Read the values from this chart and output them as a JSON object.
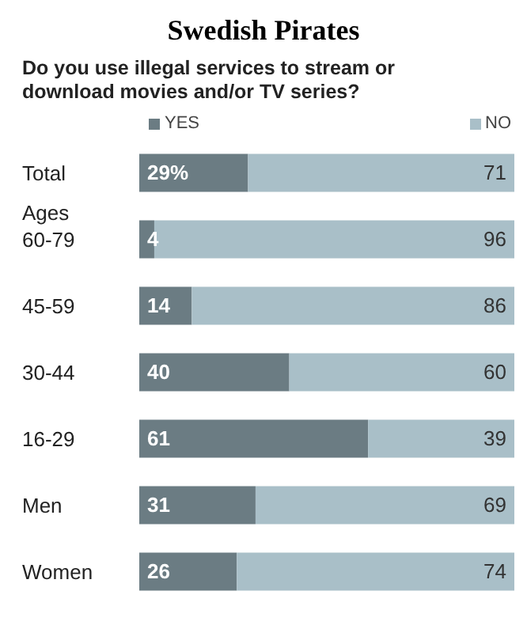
{
  "chart_data": {
    "type": "bar",
    "orientation": "horizontal",
    "stacked": true,
    "title": "Swedish Pirates",
    "subtitle": "Do you use illegal services to stream or download movies and/or TV series?",
    "categories": [
      "Total",
      "Ages\n60-79",
      "45-59",
      "30-44",
      "16-29",
      "Men",
      "Women"
    ],
    "series": [
      {
        "name": "YES",
        "color": "#6b7c83",
        "values": [
          29,
          4,
          14,
          40,
          61,
          31,
          26
        ],
        "value_labels": [
          "29%",
          "4",
          "14",
          "40",
          "61",
          "31",
          "26"
        ]
      },
      {
        "name": "NO",
        "color": "#a9bfc8",
        "values": [
          71,
          96,
          86,
          60,
          39,
          69,
          74
        ],
        "value_labels": [
          "71",
          "96",
          "86",
          "60",
          "39",
          "69",
          "74"
        ]
      }
    ],
    "xlim": [
      0,
      100
    ],
    "tick_labels": "y",
    "legend": "top"
  }
}
